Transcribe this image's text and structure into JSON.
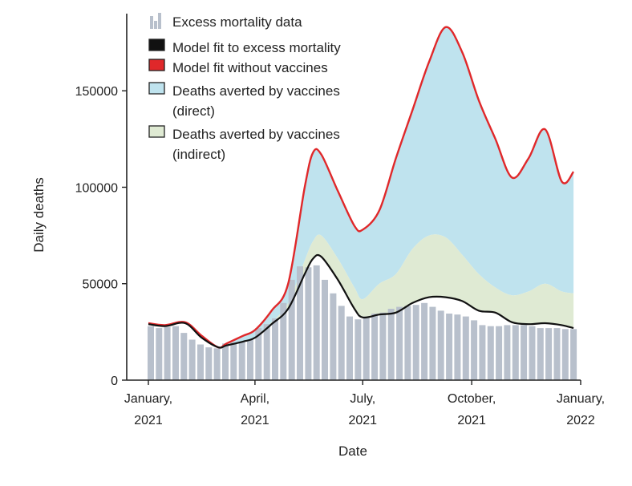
{
  "chart_data": {
    "type": "area",
    "title": "",
    "xlabel": "Date",
    "ylabel": "Daily deaths",
    "x_unit": "date",
    "xlim": [
      "2021-01-01",
      "2022-01-01"
    ],
    "ylim": [
      0,
      190000
    ],
    "x_ticks": [
      {
        "date": "2021-01-01",
        "line1": "January,",
        "line2": "2021"
      },
      {
        "date": "2021-04-01",
        "line1": "April,",
        "line2": "2021"
      },
      {
        "date": "2021-07-01",
        "line1": "July,",
        "line2": "2021"
      },
      {
        "date": "2021-10-01",
        "line1": "October,",
        "line2": "2021"
      },
      {
        "date": "2022-01-01",
        "line1": "January,",
        "line2": "2022"
      }
    ],
    "y_ticks": [
      {
        "value": 0,
        "label": "0"
      },
      {
        "value": 50000,
        "label": "50000"
      },
      {
        "value": 100000,
        "label": "100000"
      },
      {
        "value": 150000,
        "label": "150000"
      }
    ],
    "grid": false,
    "legend_position": "top-left",
    "legend": [
      {
        "key": "excess",
        "lines": [
          "Excess mortality data"
        ],
        "color": "#b8c0cc"
      },
      {
        "key": "fit",
        "lines": [
          "Model fit to excess mortality"
        ],
        "color": "#111111"
      },
      {
        "key": "novax",
        "lines": [
          "Model fit without vaccines"
        ],
        "color": "#e0282a"
      },
      {
        "key": "direct",
        "lines": [
          "Deaths averted by vaccines",
          "(direct)"
        ],
        "color": "#bfe3ee"
      },
      {
        "key": "indirect",
        "lines": [
          "Deaths averted by vaccines",
          "(indirect)"
        ],
        "color": "#dfead3"
      }
    ],
    "colors": {
      "bars": "#b8c0cc",
      "fit_line": "#111111",
      "novax_line": "#e0282a",
      "direct_fill": "#bfe3ee",
      "indirect_fill": "#dfead3",
      "axis": "#222222"
    },
    "excess_mortality_bars": {
      "dates": [
        "2021-01-03",
        "2021-01-10",
        "2021-01-17",
        "2021-01-24",
        "2021-01-31",
        "2021-02-07",
        "2021-02-14",
        "2021-02-21",
        "2021-02-28",
        "2021-03-07",
        "2021-03-14",
        "2021-03-21",
        "2021-03-28",
        "2021-04-04",
        "2021-04-11",
        "2021-04-18",
        "2021-04-25",
        "2021-05-02",
        "2021-05-09",
        "2021-05-16",
        "2021-05-23",
        "2021-05-30",
        "2021-06-06",
        "2021-06-13",
        "2021-06-20",
        "2021-06-27",
        "2021-07-04",
        "2021-07-11",
        "2021-07-18",
        "2021-07-25",
        "2021-08-01",
        "2021-08-08",
        "2021-08-15",
        "2021-08-22",
        "2021-08-29",
        "2021-09-05",
        "2021-09-12",
        "2021-09-19",
        "2021-09-26",
        "2021-10-03",
        "2021-10-10",
        "2021-10-17",
        "2021-10-24",
        "2021-10-31",
        "2021-11-07",
        "2021-11-14",
        "2021-11-21",
        "2021-11-28",
        "2021-12-05",
        "2021-12-12",
        "2021-12-19",
        "2021-12-26"
      ],
      "values": [
        28000,
        27000,
        27500,
        28000,
        24500,
        21000,
        18500,
        17000,
        16500,
        19000,
        19500,
        20000,
        21000,
        27000,
        29000,
        32000,
        40000,
        52000,
        59000,
        58500,
        59500,
        52000,
        45000,
        38500,
        33000,
        31500,
        33000,
        34500,
        35000,
        37000,
        38000,
        38500,
        39000,
        40000,
        38000,
        36000,
        34500,
        34000,
        33000,
        31000,
        28500,
        28000,
        28000,
        28500,
        28500,
        28500,
        28000,
        27000,
        27000,
        27000,
        26500,
        26500
      ]
    },
    "series": [
      {
        "key": "fit",
        "name": "Model fit to excess mortality",
        "dates": [
          "2021-01-01",
          "2021-01-15",
          "2021-02-01",
          "2021-02-15",
          "2021-03-01",
          "2021-03-08",
          "2021-03-22",
          "2021-04-01",
          "2021-04-15",
          "2021-04-29",
          "2021-05-13",
          "2021-05-20",
          "2021-05-27",
          "2021-06-10",
          "2021-06-24",
          "2021-07-01",
          "2021-07-15",
          "2021-07-29",
          "2021-08-12",
          "2021-08-26",
          "2021-09-09",
          "2021-09-23",
          "2021-10-07",
          "2021-10-21",
          "2021-11-04",
          "2021-11-18",
          "2021-12-02",
          "2021-12-16",
          "2021-12-26"
        ],
        "values": [
          29000,
          28000,
          29500,
          22000,
          17000,
          18000,
          20000,
          22000,
          29000,
          37000,
          55000,
          63000,
          64000,
          52000,
          37000,
          32500,
          34000,
          35000,
          40000,
          43000,
          43000,
          41000,
          36000,
          35000,
          30000,
          29000,
          29500,
          28500,
          27000
        ]
      },
      {
        "key": "novax",
        "name": "Model fit without vaccines",
        "dates": [
          "2021-01-01",
          "2021-01-15",
          "2021-02-01",
          "2021-02-15",
          "2021-03-01",
          "2021-03-08",
          "2021-03-22",
          "2021-04-01",
          "2021-04-15",
          "2021-04-29",
          "2021-05-13",
          "2021-05-20",
          "2021-05-27",
          "2021-06-10",
          "2021-06-24",
          "2021-07-01",
          "2021-07-15",
          "2021-07-29",
          "2021-08-12",
          "2021-08-26",
          "2021-09-09",
          "2021-09-23",
          "2021-10-07",
          "2021-10-21",
          "2021-11-04",
          "2021-11-18",
          "2021-12-02",
          "2021-12-16",
          "2021-12-26"
        ],
        "values": [
          29500,
          28500,
          30000,
          23000,
          17000,
          19000,
          23000,
          26000,
          36000,
          50000,
          100000,
          118000,
          117000,
          98000,
          80000,
          78000,
          88000,
          115000,
          140000,
          165000,
          183000,
          170000,
          145000,
          125000,
          105000,
          115000,
          130000,
          103000,
          108000
        ]
      },
      {
        "key": "indirect_top",
        "name": "Deaths averted by vaccines (indirect) upper bound",
        "dates": [
          "2021-01-01",
          "2021-01-15",
          "2021-02-01",
          "2021-02-15",
          "2021-03-01",
          "2021-03-08",
          "2021-03-22",
          "2021-04-01",
          "2021-04-15",
          "2021-04-29",
          "2021-05-13",
          "2021-05-20",
          "2021-05-27",
          "2021-06-10",
          "2021-06-24",
          "2021-07-01",
          "2021-07-15",
          "2021-07-29",
          "2021-08-12",
          "2021-08-26",
          "2021-09-09",
          "2021-09-23",
          "2021-10-07",
          "2021-10-21",
          "2021-11-04",
          "2021-11-18",
          "2021-12-02",
          "2021-12-16",
          "2021-12-26"
        ],
        "values": [
          29000,
          28000,
          29500,
          22000,
          17000,
          18000,
          20000,
          22500,
          30000,
          40000,
          62000,
          72000,
          75000,
          63000,
          48000,
          42000,
          50000,
          55000,
          68000,
          75000,
          74000,
          65000,
          55000,
          48000,
          44000,
          46000,
          50000,
          46000,
          45000
        ]
      }
    ]
  }
}
